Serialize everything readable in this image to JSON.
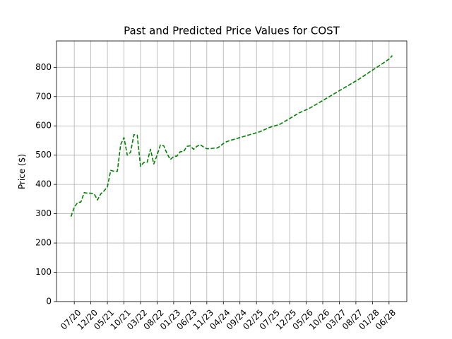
{
  "chart_data": {
    "type": "line",
    "title": "Past and Predicted Price Values for COST",
    "xlabel": "",
    "ylabel": "Price ($)",
    "ylim": [
      0,
      890
    ],
    "y_ticks": [
      0,
      100,
      200,
      300,
      400,
      500,
      600,
      700,
      800
    ],
    "x_tick_labels": [
      "07/20",
      "12/20",
      "05/21",
      "10/21",
      "03/22",
      "08/22",
      "01/23",
      "06/23",
      "11/23",
      "04/24",
      "09/24",
      "02/25",
      "07/25",
      "12/25",
      "05/26",
      "10/26",
      "03/27",
      "08/27",
      "01/28",
      "06/28"
    ],
    "grid": true,
    "line_style": "dashed",
    "series": [
      {
        "color": "#008000",
        "x": [
          "2020-06",
          "2020-07",
          "2020-08",
          "2020-09",
          "2020-10",
          "2020-11",
          "2020-12",
          "2021-01",
          "2021-02",
          "2021-03",
          "2021-04",
          "2021-05",
          "2021-06",
          "2021-07",
          "2021-08",
          "2021-09",
          "2021-10",
          "2021-11",
          "2021-12",
          "2022-01",
          "2022-02",
          "2022-03",
          "2022-04",
          "2022-05",
          "2022-06",
          "2022-07",
          "2022-08",
          "2022-09",
          "2022-10",
          "2022-11",
          "2022-12",
          "2023-01",
          "2023-02",
          "2023-03",
          "2023-04",
          "2023-05",
          "2023-06",
          "2023-07",
          "2023-08",
          "2023-09",
          "2023-10",
          "2023-11",
          "2023-12",
          "2024-01",
          "2024-02",
          "2024-03",
          "2024-04",
          "2024-05",
          "2024-06",
          "2024-09",
          "2024-12",
          "2025-03",
          "2025-06",
          "2025-09",
          "2025-12",
          "2026-03",
          "2026-06",
          "2026-09",
          "2026-12",
          "2027-03",
          "2027-06",
          "2027-09",
          "2027-12",
          "2028-03",
          "2028-06",
          "2028-07"
        ],
        "y": [
          290,
          322,
          338,
          340,
          372,
          370,
          370,
          368,
          347,
          368,
          378,
          392,
          448,
          445,
          445,
          536,
          560,
          500,
          510,
          570,
          568,
          462,
          475,
          476,
          520,
          470,
          500,
          535,
          532,
          505,
          485,
          495,
          497,
          512,
          512,
          530,
          532,
          520,
          530,
          536,
          528,
          522,
          522,
          524,
          524,
          530,
          540,
          546,
          550,
          560,
          570,
          580,
          595,
          605,
          625,
          645,
          660,
          680,
          700,
          720,
          740,
          760,
          783,
          805,
          828,
          840
        ]
      }
    ]
  }
}
